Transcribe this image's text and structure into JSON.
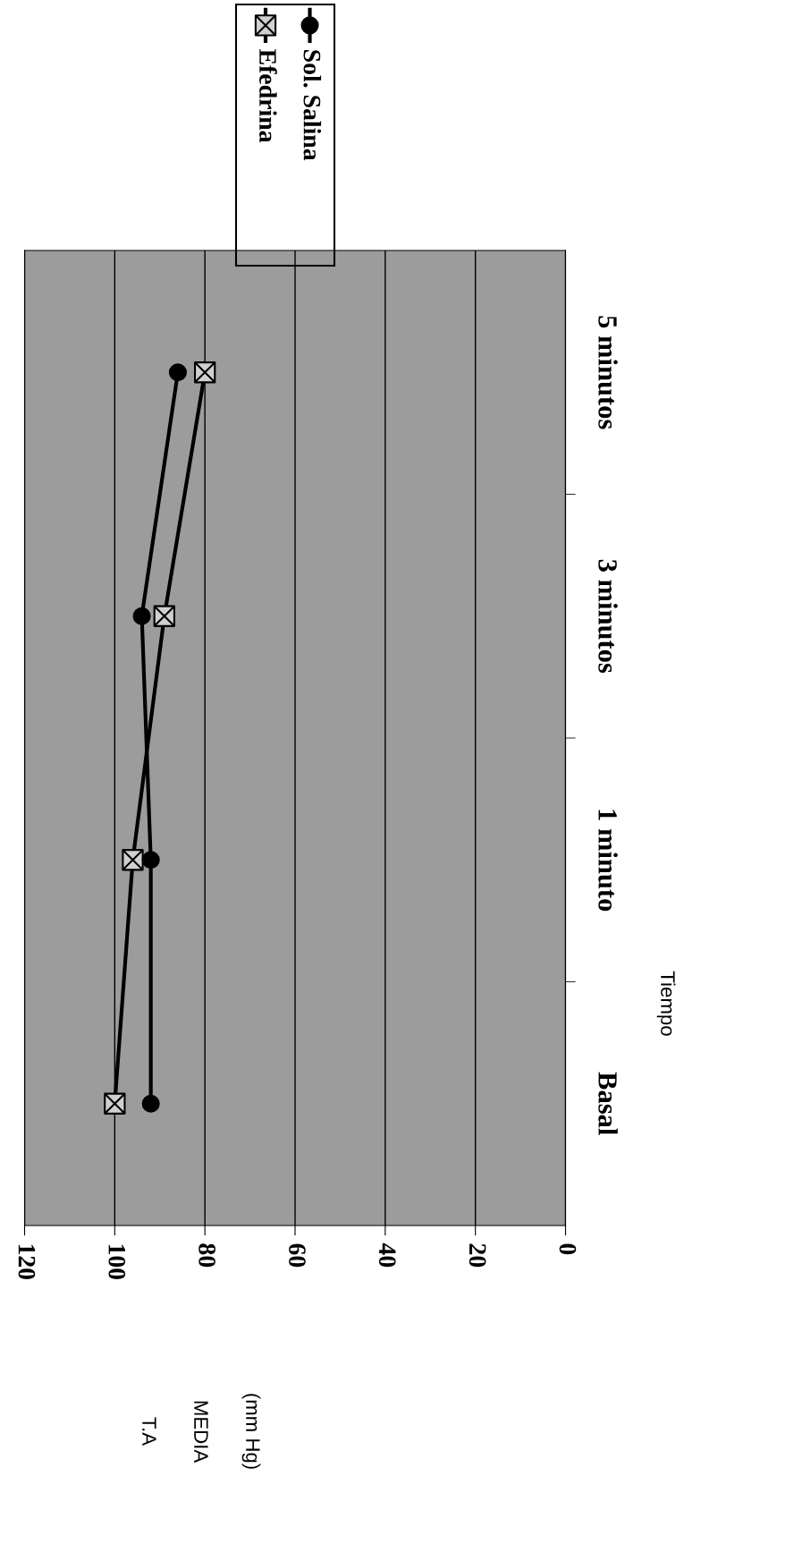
{
  "chart_data": {
    "type": "line",
    "orientation": "horizontal",
    "xlabel": "T.A\nMEDIA\n(mm Hg)",
    "ylabel": "Tiempo",
    "categories": [
      "5 minutos",
      "3 minutos",
      "1 minuto",
      "Basal"
    ],
    "series": [
      {
        "name": "Efedrina",
        "color": "#000000",
        "marker": "cross",
        "values": [
          80,
          89,
          96,
          100
        ]
      },
      {
        "name": "Sol. Salina",
        "color": "#000000",
        "marker": "circle",
        "values": [
          86,
          94,
          92,
          92
        ]
      }
    ],
    "xlim": [
      120,
      0
    ],
    "xticks": [
      120,
      100,
      80,
      60,
      40,
      20,
      0
    ],
    "grid": "x",
    "legend": "top right"
  }
}
